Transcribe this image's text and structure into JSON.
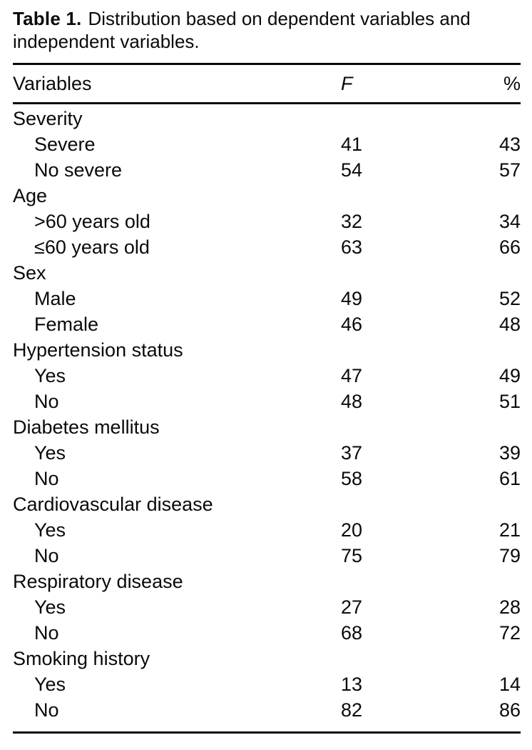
{
  "caption": {
    "label": "Table 1.",
    "text_line1": "Distribution based on dependent variables and",
    "text_line2": "independent variables."
  },
  "table": {
    "columns": [
      "Variables",
      "F",
      "%"
    ],
    "groups": [
      {
        "name": "Severity",
        "rows": [
          {
            "label": "Severe",
            "f": "41",
            "pct": "43"
          },
          {
            "label": "No severe",
            "f": "54",
            "pct": "57"
          }
        ]
      },
      {
        "name": "Age",
        "rows": [
          {
            "label": ">60 years old",
            "f": "32",
            "pct": "34"
          },
          {
            "label": "≤60 years old",
            "f": "63",
            "pct": "66"
          }
        ]
      },
      {
        "name": "Sex",
        "rows": [
          {
            "label": "Male",
            "f": "49",
            "pct": "52"
          },
          {
            "label": "Female",
            "f": "46",
            "pct": "48"
          }
        ]
      },
      {
        "name": "Hypertension status",
        "rows": [
          {
            "label": "Yes",
            "f": "47",
            "pct": "49"
          },
          {
            "label": "No",
            "f": "48",
            "pct": "51"
          }
        ]
      },
      {
        "name": "Diabetes mellitus",
        "rows": [
          {
            "label": "Yes",
            "f": "37",
            "pct": "39"
          },
          {
            "label": "No",
            "f": "58",
            "pct": "61"
          }
        ]
      },
      {
        "name": "Cardiovascular disease",
        "rows": [
          {
            "label": "Yes",
            "f": "20",
            "pct": "21"
          },
          {
            "label": "No",
            "f": "75",
            "pct": "79"
          }
        ]
      },
      {
        "name": "Respiratory disease",
        "rows": [
          {
            "label": "Yes",
            "f": "27",
            "pct": "28"
          },
          {
            "label": "No",
            "f": "68",
            "pct": "72"
          }
        ]
      },
      {
        "name": "Smoking history",
        "rows": [
          {
            "label": "Yes",
            "f": "13",
            "pct": "14"
          },
          {
            "label": "No",
            "f": "82",
            "pct": "86"
          }
        ]
      }
    ]
  },
  "colors": {
    "text": "#0a0a0a",
    "background": "#ffffff",
    "rule": "#0a0a0a"
  }
}
